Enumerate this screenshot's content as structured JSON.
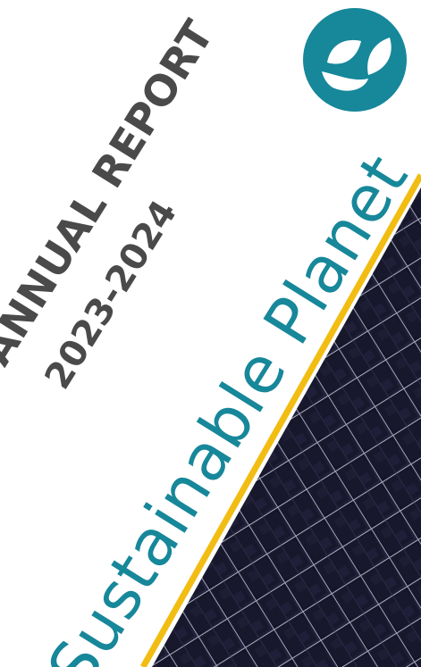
{
  "report": {
    "title": "ANNUAL REPORT",
    "years": "2023-2024"
  },
  "organization": {
    "name": "Sustainable Planet"
  },
  "logo": {
    "icon": "leaf-logo-icon",
    "color": "#17879a"
  },
  "colors": {
    "title_text": "#4a4a4a",
    "brand_teal": "#17879a",
    "accent_yellow": "#f2bd12",
    "panel_dark": "#12121f"
  }
}
